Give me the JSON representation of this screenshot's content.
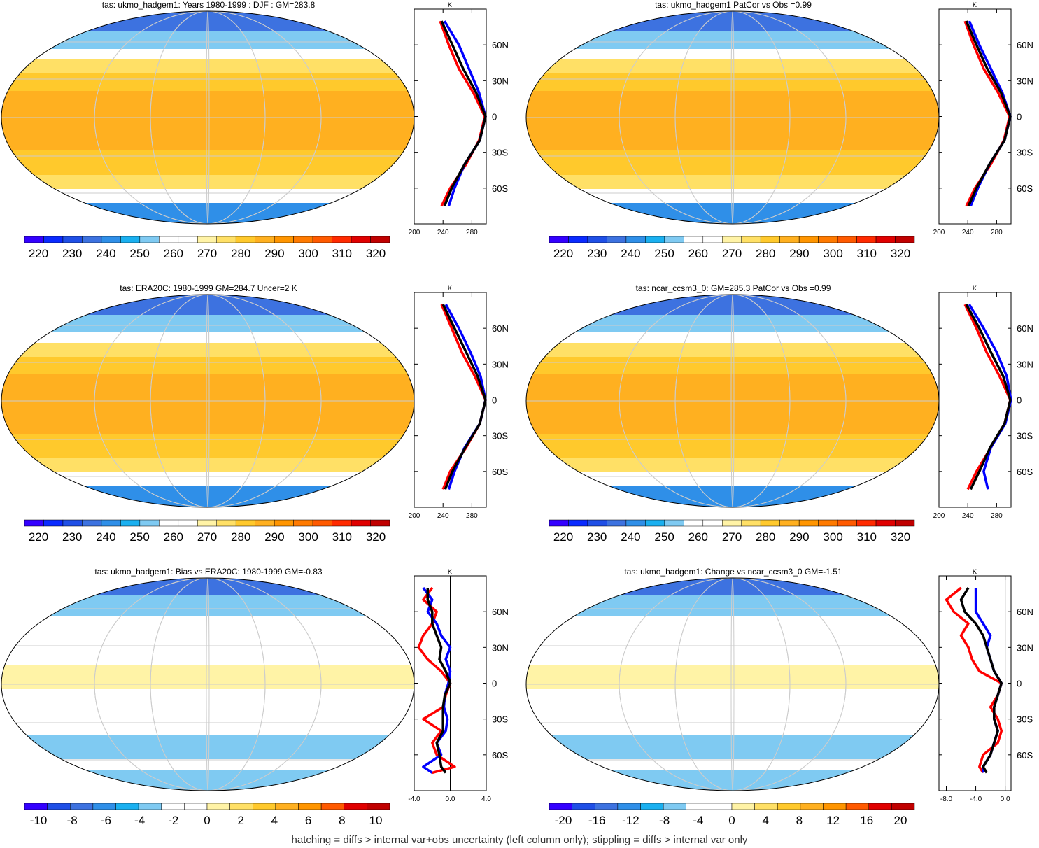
{
  "footnote": "hatching = diffs > internal var+obs uncertainty (left column only); stippling = diffs > internal var only",
  "chart_data": [
    {
      "type": "heatmap",
      "title": "tas: ukmo_hadgem1: Years 1980-1999 : DJF : GM=283.8",
      "colorbar_ticks": [
        "220",
        "230",
        "240",
        "250",
        "260",
        "270",
        "280",
        "290",
        "300",
        "310",
        "320"
      ],
      "profile": {
        "xlabel": "K",
        "x_ticks": [
          "200",
          "240",
          "280"
        ],
        "y_ticks": [
          "60N",
          "30N",
          "0",
          "30S",
          "60S"
        ],
        "lat": [
          80,
          60,
          40,
          20,
          0,
          -20,
          -40,
          -60,
          -75
        ],
        "series": [
          {
            "color": "#ff0000",
            "values": [
              236,
              248,
              262,
              282,
              298,
              290,
              272,
              250,
              238
            ]
          },
          {
            "color": "#0000ff",
            "values": [
              242,
              262,
              276,
              290,
              299,
              291,
              270,
              256,
              248
            ]
          },
          {
            "color": "#000000",
            "values": [
              238,
              253,
              268,
              286,
              299,
              291,
              270,
              252,
              242
            ]
          }
        ]
      }
    },
    {
      "type": "heatmap",
      "title": "tas: ukmo_hadgem1 PatCor vs Obs =0.99",
      "colorbar_ticks": [
        "220",
        "230",
        "240",
        "250",
        "260",
        "270",
        "280",
        "290",
        "300",
        "310",
        "320"
      ],
      "profile": {
        "xlabel": "K",
        "x_ticks": [
          "200",
          "240",
          "280"
        ],
        "y_ticks": [
          "60N",
          "30N",
          "0",
          "30S",
          "60S"
        ],
        "lat": [
          80,
          60,
          40,
          20,
          0,
          -20,
          -40,
          -60,
          -75
        ],
        "series": [
          {
            "color": "#ff0000",
            "values": [
              236,
              248,
              262,
              282,
              298,
              290,
              272,
              250,
              238
            ]
          },
          {
            "color": "#0000ff",
            "values": [
              242,
              256,
              272,
              288,
              299,
              291,
              270,
              254,
              244
            ]
          },
          {
            "color": "#000000",
            "values": [
              238,
              252,
              267,
              286,
              299,
              291,
              270,
              252,
              241
            ]
          }
        ]
      }
    },
    {
      "type": "heatmap",
      "title": "tas: ERA20C: 1980-1999 GM=284.7 Uncer=2 K",
      "colorbar_ticks": [
        "220",
        "230",
        "240",
        "250",
        "260",
        "270",
        "280",
        "290",
        "300",
        "310",
        "320"
      ],
      "profile": {
        "xlabel": "K",
        "x_ticks": [
          "200",
          "240",
          "280"
        ],
        "y_ticks": [
          "60N",
          "30N",
          "0",
          "30S",
          "60S"
        ],
        "lat": [
          80,
          60,
          40,
          20,
          0,
          -20,
          -40,
          -60,
          -75
        ],
        "series": [
          {
            "color": "#ff0000",
            "values": [
              238,
              252,
              266,
              284,
              299,
              291,
              272,
              250,
              240
            ]
          },
          {
            "color": "#0000ff",
            "values": [
              244,
              262,
              278,
              292,
              299,
              291,
              270,
              256,
              248
            ]
          },
          {
            "color": "#000000",
            "values": [
              240,
              256,
              272,
              288,
              299,
              291,
              271,
              253,
              243
            ]
          }
        ]
      }
    },
    {
      "type": "heatmap",
      "title": "tas: ncar_ccsm3_0: GM=285.3 PatCor vs Obs =0.99",
      "colorbar_ticks": [
        "220",
        "230",
        "240",
        "250",
        "260",
        "270",
        "280",
        "290",
        "300",
        "310",
        "320"
      ],
      "profile": {
        "xlabel": "K",
        "x_ticks": [
          "200",
          "240",
          "280"
        ],
        "y_ticks": [
          "60N",
          "30N",
          "0",
          "30S",
          "60S"
        ],
        "lat": [
          80,
          60,
          40,
          20,
          0,
          -20,
          -40,
          -60,
          -75
        ],
        "series": [
          {
            "color": "#ff0000",
            "values": [
              236,
              252,
              266,
              284,
              299,
              291,
              272,
              252,
              240
            ]
          },
          {
            "color": "#0000ff",
            "values": [
              242,
              262,
              280,
              294,
              300,
              292,
              272,
              262,
              268
            ]
          },
          {
            "color": "#000000",
            "values": [
              238,
              256,
              272,
              289,
              299,
              291,
              271,
              256,
              244
            ]
          }
        ]
      }
    },
    {
      "type": "heatmap",
      "title": "tas: ukmo_hadgem1: Bias vs ERA20C: 1980-1999 GM=-0.83",
      "colorbar_ticks": [
        "-10",
        "-8",
        "-6",
        "-4",
        "-2",
        "0",
        "2",
        "4",
        "6",
        "8",
        "10"
      ],
      "profile": {
        "xlabel": "K",
        "x_ticks": [
          "-4.0",
          "0.0",
          "4.0"
        ],
        "y_ticks": [
          "60N",
          "30N",
          "0",
          "30S",
          "60S"
        ],
        "lat": [
          80,
          70,
          60,
          50,
          40,
          30,
          20,
          10,
          0,
          -10,
          -20,
          -30,
          -40,
          -50,
          -60,
          -70,
          -75
        ],
        "series": [
          {
            "color": "#ff0000",
            "values": [
              -2,
              -3,
              -1.5,
              -2,
              -3,
              -3.5,
              -2.5,
              -1,
              0,
              -0.5,
              -0.8,
              -3,
              -1,
              -2,
              -1.5,
              0.5,
              -2
            ]
          },
          {
            "color": "#0000ff",
            "values": [
              -3,
              -2,
              -2.5,
              -1.5,
              -1,
              0,
              -0.5,
              0,
              -0.2,
              -0.6,
              -0.7,
              -0.3,
              -0.5,
              -1.5,
              -1,
              -3,
              -2
            ]
          },
          {
            "color": "#000000",
            "values": [
              -2.5,
              -2.5,
              -2,
              -2,
              -1.5,
              -1,
              -1.2,
              -0.5,
              0,
              -0.6,
              -0.8,
              -0.8,
              -0.8,
              -1.5,
              -1.2,
              -1,
              -0.5
            ]
          }
        ]
      }
    },
    {
      "type": "heatmap",
      "title": "tas: ukmo_hadgem1: Change vs ncar_ccsm3_0 GM=-1.51",
      "colorbar_ticks": [
        "-20",
        "-16",
        "-12",
        "-8",
        "-4",
        "0",
        "4",
        "8",
        "12",
        "16",
        "20"
      ],
      "profile": {
        "xlabel": "K",
        "x_ticks": [
          "-8.0",
          "-4.0",
          "0.0"
        ],
        "y_ticks": [
          "60N",
          "30N",
          "0",
          "30S",
          "60S"
        ],
        "lat": [
          80,
          70,
          60,
          50,
          40,
          30,
          20,
          10,
          0,
          -10,
          -20,
          -30,
          -40,
          -50,
          -60,
          -70,
          -75
        ],
        "series": [
          {
            "color": "#ff0000",
            "values": [
              -6,
              -8,
              -7,
              -5,
              -6,
              -5,
              -4.5,
              -3.5,
              -0.5,
              -1,
              -2,
              -1,
              -0.5,
              -1,
              -3,
              -3.5,
              -3
            ]
          },
          {
            "color": "#0000ff",
            "values": [
              -4,
              -4,
              -4,
              -3,
              -2,
              -2.5,
              -2,
              -1.5,
              -0.5,
              -1,
              -1.5,
              -1.5,
              -1,
              -1.5,
              -2,
              -3,
              -3
            ]
          },
          {
            "color": "#000000",
            "values": [
              -5,
              -6,
              -5.5,
              -4,
              -3,
              -2.5,
              -2,
              -1.5,
              -0.5,
              -1,
              -1.5,
              -1.5,
              -1,
              -1.5,
              -2,
              -3,
              -2.5
            ]
          }
        ]
      }
    }
  ]
}
